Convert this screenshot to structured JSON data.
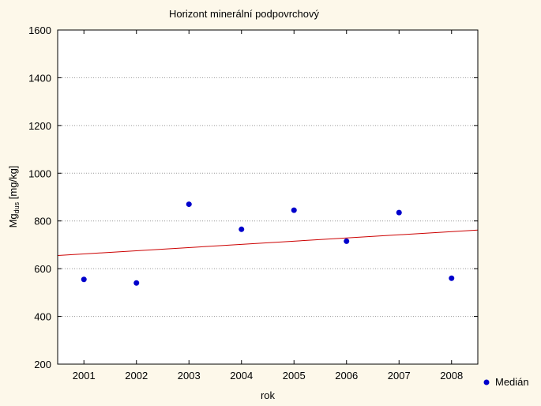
{
  "chart_data": {
    "type": "scatter",
    "title": "Horizont minerální podpovrchový",
    "xlabel": "rok",
    "ylabel_main": "Mg",
    "ylabel_sub": "dus",
    "ylabel_unit": " [mg/kg]",
    "x": [
      2001,
      2002,
      2003,
      2004,
      2005,
      2006,
      2007,
      2008
    ],
    "xlim": [
      2000.5,
      2008.5
    ],
    "ylim": [
      200,
      1600
    ],
    "yticks": [
      200,
      400,
      600,
      800,
      1000,
      1200,
      1400,
      1600
    ],
    "grid": true,
    "legend_position": "bottom-right",
    "series": [
      {
        "name": "Medián",
        "values": [
          555,
          540,
          870,
          765,
          845,
          715,
          835,
          560
        ],
        "color": "#0000cc"
      }
    ],
    "trendline": {
      "color": "#cc0000",
      "start": [
        2000.5,
        655
      ],
      "end": [
        2008.5,
        762
      ]
    }
  }
}
